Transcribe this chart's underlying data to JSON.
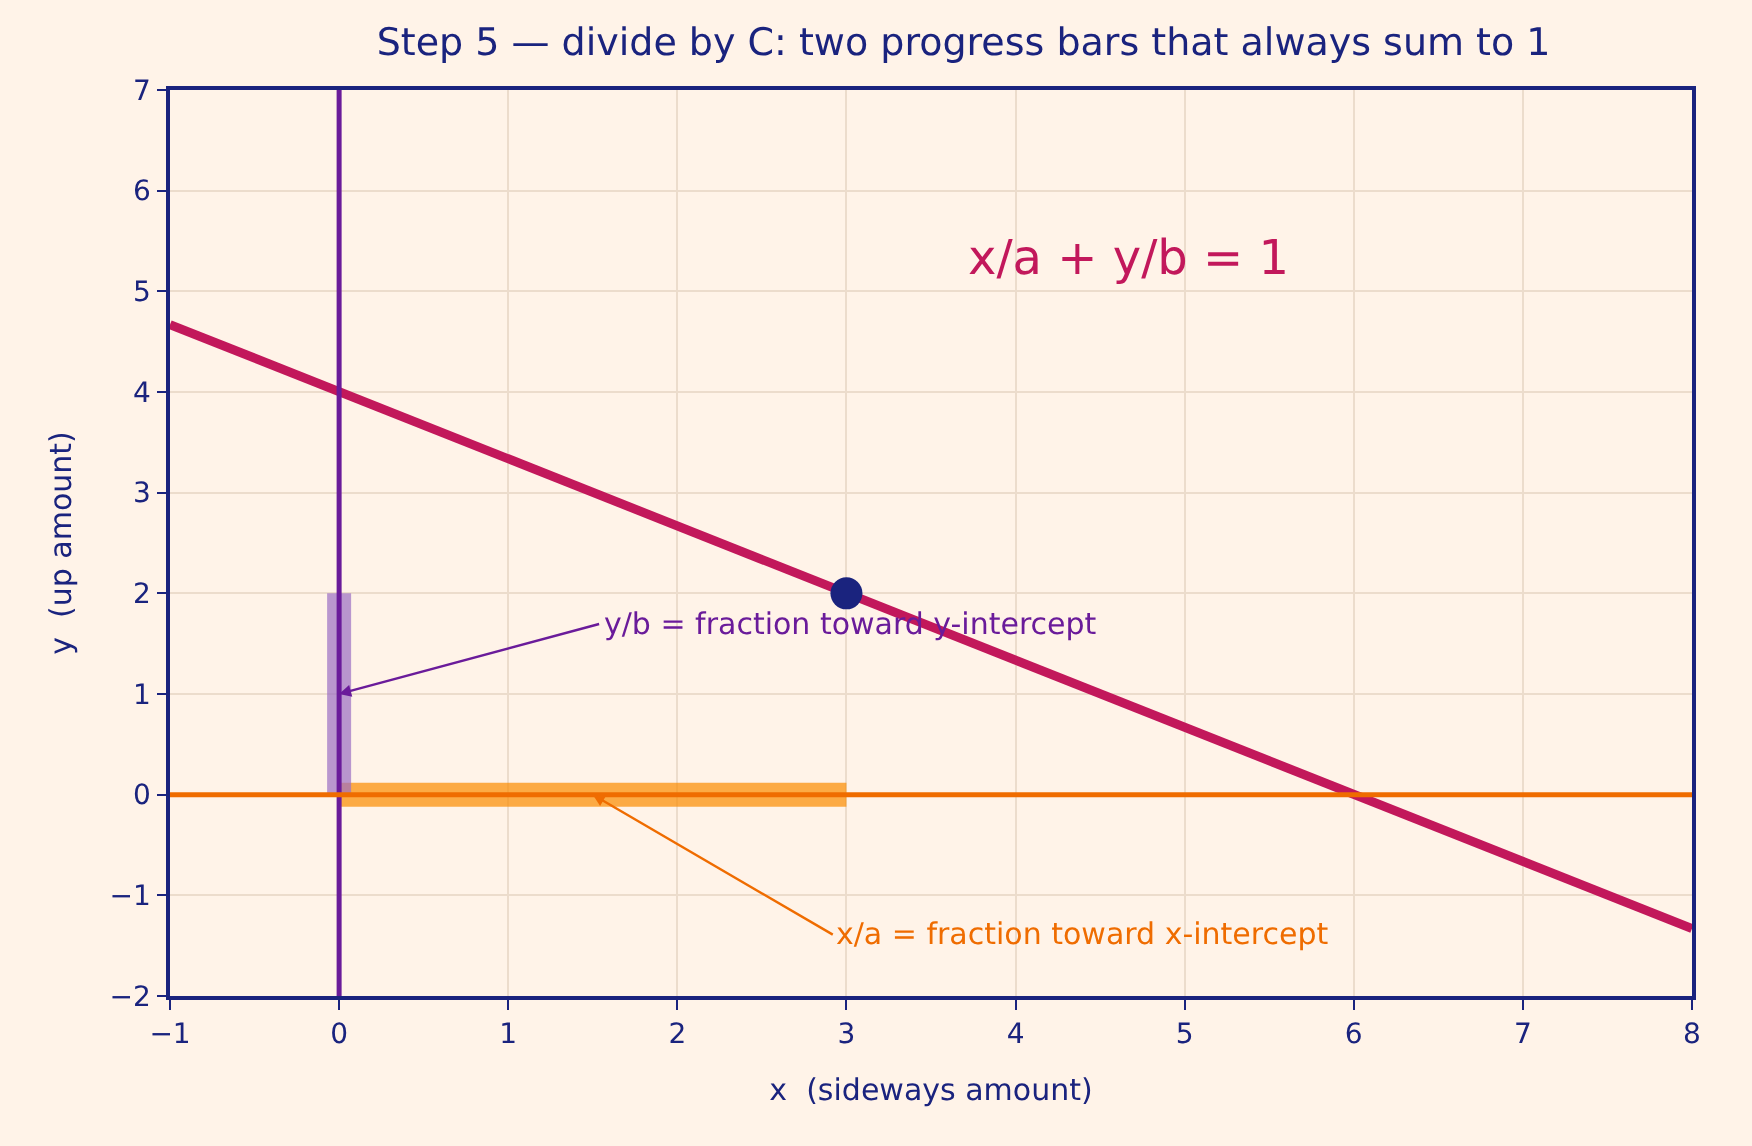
{
  "chart_data": {
    "type": "line",
    "title": "Step 5 — divide by C: two progress bars that always sum to 1",
    "xlabel": "x  (sideways amount)",
    "ylabel": "y  (up amount)",
    "xlim": [
      -1,
      8
    ],
    "ylim": [
      -2,
      7
    ],
    "xticks": [
      -1,
      0,
      1,
      2,
      3,
      4,
      5,
      6,
      7,
      8
    ],
    "yticks": [
      -2,
      -1,
      0,
      1,
      2,
      3,
      4,
      5,
      6,
      7
    ],
    "grid": true,
    "series": [
      {
        "x": [
          -1,
          8
        ],
        "values": [
          4.67,
          -1.33
        ],
        "color": "#c2185b"
      },
      {
        "type": "line",
        "x": [
          0,
          3
        ],
        "values": [
          0,
          0
        ],
        "color": "#fb8c00"
      },
      {
        "type": "line",
        "x": [
          0,
          0
        ],
        "values": [
          0,
          2
        ],
        "color": "#9c6fc4"
      },
      {
        "type": "scatter",
        "x": [
          3
        ],
        "values": [
          2
        ],
        "color": "#1a237e",
        "marker": "circle"
      }
    ],
    "ref_lines": [
      {
        "axis": "x",
        "value": 0,
        "color": "#6a1b9a"
      },
      {
        "axis": "y",
        "value": 0,
        "color": "#ef6c00"
      }
    ],
    "annotations": [
      "x/a + y/b = 1",
      {
        "text": "y/b = fraction toward y-intercept",
        "x": 0,
        "y": 1
      },
      {
        "text": "x/a = fraction toward x-intercept",
        "x": 1.5,
        "y": 0
      }
    ]
  }
}
